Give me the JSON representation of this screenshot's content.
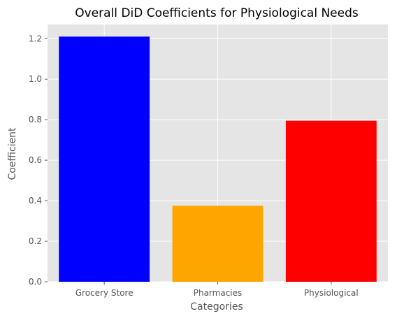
{
  "chart_data": {
    "type": "bar",
    "title": "Overall DiD Coefficients for Physiological Needs",
    "xlabel": "Categories",
    "ylabel": "Coefficient",
    "categories": [
      "Grocery Store",
      "Pharmacies",
      "Physiological"
    ],
    "values": [
      1.21,
      0.375,
      0.795
    ],
    "colors": [
      "#0000ff",
      "#ffa500",
      "#ff0000"
    ],
    "ylim": [
      0,
      1.27
    ],
    "yticks": [
      0.0,
      0.2,
      0.4,
      0.6,
      0.8,
      1.0,
      1.2
    ],
    "ytick_labels": [
      "0.0",
      "0.2",
      "0.4",
      "0.6",
      "0.8",
      "1.0",
      "1.2"
    ],
    "grid": true,
    "plot_background": "#e5e5e5",
    "grid_color": "#ffffff"
  }
}
